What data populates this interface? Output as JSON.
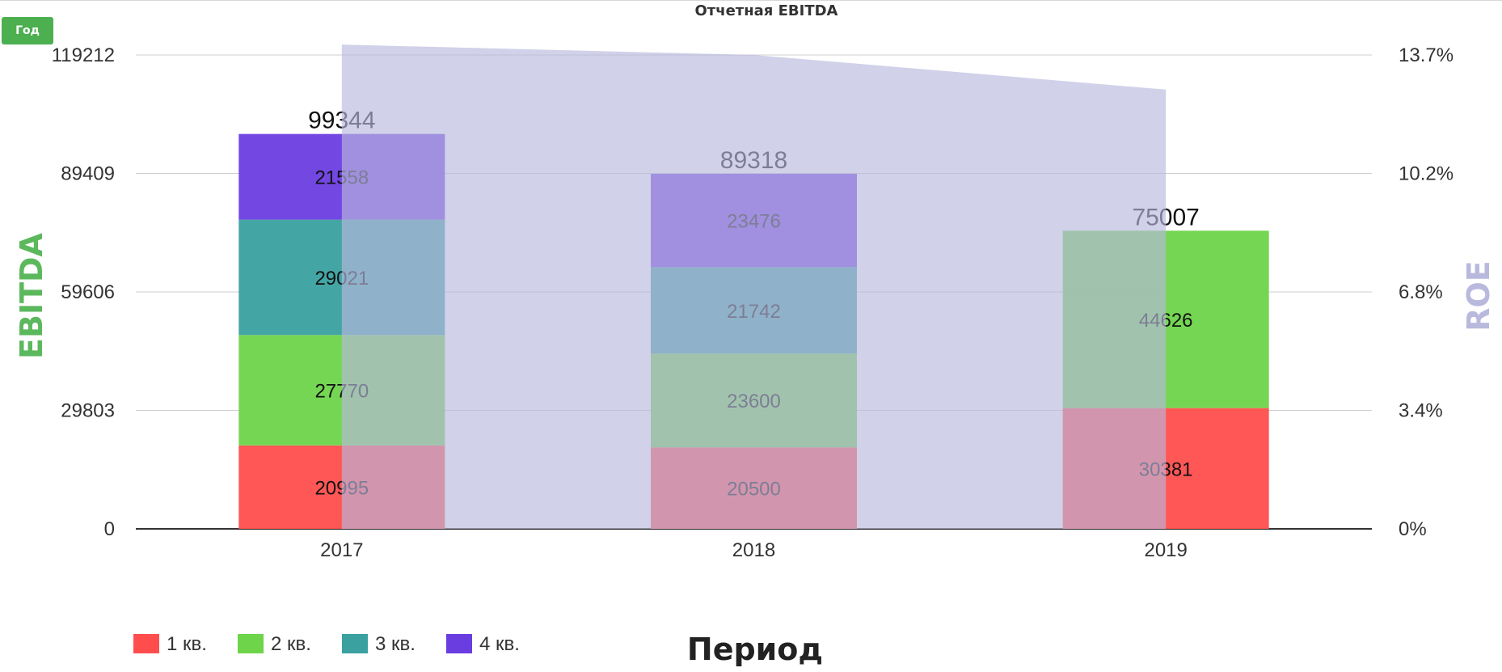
{
  "controls": {
    "period_button": "Год"
  },
  "colors": {
    "q1": "#ff4d4d",
    "q2": "#6ed44a",
    "q3": "#3aa0a0",
    "q4": "#6a3de0",
    "roe": "#b9b9dd",
    "ebitda_label": "#5cb85c"
  },
  "chart_data": {
    "type": "bar",
    "stacked": true,
    "title": "Отчетная EBITDA",
    "xlabel": "Период",
    "ylabel": "EBITDA",
    "y2label": "ROE",
    "categories": [
      "2017",
      "2018",
      "2019"
    ],
    "series": [
      {
        "name": "1 кв.",
        "color": "#ff4d4d",
        "values": [
          20995,
          20500,
          30381
        ]
      },
      {
        "name": "2 кв.",
        "color": "#6ed44a",
        "values": [
          27770,
          23600,
          44626
        ]
      },
      {
        "name": "3 кв.",
        "color": "#3aa0a0",
        "values": [
          29021,
          21742,
          null
        ]
      },
      {
        "name": "4 кв.",
        "color": "#6a3de0",
        "values": [
          21558,
          23476,
          null
        ]
      }
    ],
    "totals": [
      99344,
      89318,
      75007
    ],
    "ylim": [
      0,
      119212
    ],
    "yticks": [
      "0",
      "29803",
      "59606",
      "89409",
      "119212"
    ],
    "y2lim": [
      0,
      13.7
    ],
    "y2ticks": [
      "0%",
      "3.4%",
      "6.8%",
      "10.2%",
      "13.7%"
    ],
    "roe_area": {
      "type": "area",
      "color": "#b9b9dd",
      "values": [
        14.0,
        13.7,
        12.7
      ]
    },
    "legend_position": "bottom-left",
    "grid": true
  }
}
